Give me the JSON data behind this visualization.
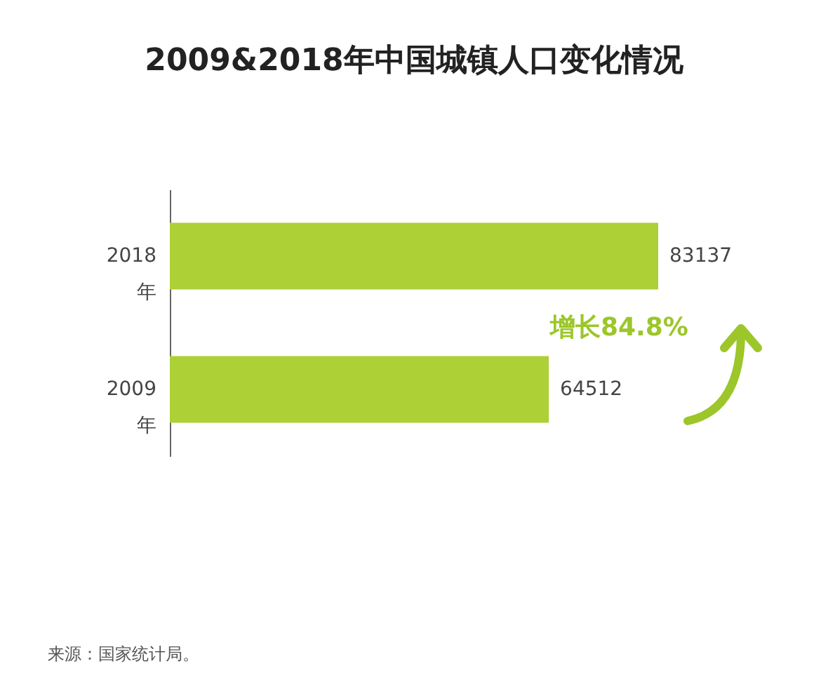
{
  "chart_data": {
    "type": "bar",
    "orientation": "horizontal",
    "title": "2009&2018年中国城镇人口变化情况",
    "categories": [
      "2018年",
      "2009年"
    ],
    "values": [
      83137,
      64512
    ],
    "color": "#acd036",
    "data_labels": true,
    "annotations": [
      "增长84.8%",
      "来源：国家统计局。"
    ]
  }
}
